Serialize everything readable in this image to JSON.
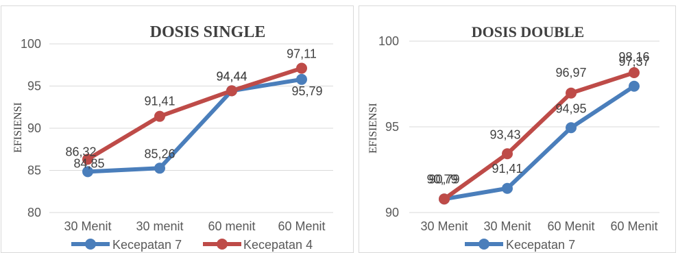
{
  "chart_data": [
    {
      "type": "line",
      "title": "DOSIS SINGLE",
      "ylabel": "EFISIENSI",
      "xlabel": "",
      "categories": [
        "30 Menit",
        "30 menit",
        "60 menit",
        "60 Menit"
      ],
      "ylim": [
        80,
        100
      ],
      "yticks": [
        "80",
        "85",
        "90",
        "95",
        "100"
      ],
      "grid": true,
      "legend": "bottom",
      "series": [
        {
          "name": "Kecepatan 7",
          "color": "#4a7ebb",
          "values": [
            84.85,
            85.26,
            94.44,
            95.79
          ],
          "labels": [
            "84,85",
            "85,26",
            "94,44",
            "95,79"
          ]
        },
        {
          "name": "Kecepatan 4",
          "color": "#be4b48",
          "values": [
            86.32,
            91.41,
            94.44,
            97.11
          ],
          "labels": [
            "86,32",
            "91,41",
            "94,44",
            "97,11"
          ]
        }
      ]
    },
    {
      "type": "line",
      "title": "DOSIS DOUBLE",
      "ylabel": "EFISIENSI",
      "xlabel": "",
      "categories": [
        "30 Menit",
        "30 Menit",
        "60 Menit",
        "60 Menit"
      ],
      "ylim": [
        90,
        100
      ],
      "yticks": [
        "90",
        "95",
        "100"
      ],
      "grid": true,
      "legend": "bottom",
      "series": [
        {
          "name": "Kecepatan 7",
          "color": "#4a7ebb",
          "values": [
            90.79,
            91.41,
            94.95,
            97.37
          ],
          "labels": [
            "90,79",
            "91,41",
            "94,95",
            "97,37"
          ]
        },
        {
          "name": "",
          "color": "#be4b48",
          "values": [
            90.79,
            93.43,
            96.97,
            98.16
          ],
          "labels": [
            "90,79",
            "93,43",
            "96,97",
            "98,16"
          ]
        }
      ]
    }
  ]
}
